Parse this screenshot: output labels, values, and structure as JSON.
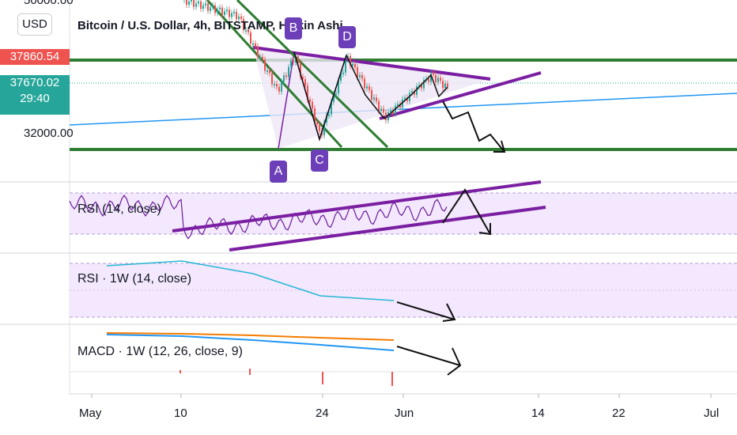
{
  "chart_data": {
    "type": "line",
    "title": "Bitcoin / U.S. Dollar, 4h, BITSTAMP, Heikin Ashi",
    "currency": "USD",
    "price_axis": {
      "ticks": [
        "50000.00",
        "32000.00"
      ],
      "last_price": "37860.54",
      "mark_price": "37670.02",
      "countdown": "29:40",
      "scale": "log"
    },
    "x_axis_ticks": [
      "May",
      "10",
      "24",
      "Jun",
      "14",
      "22",
      "Jul"
    ],
    "pattern_points": [
      "A",
      "B",
      "C",
      "D"
    ],
    "panes": [
      {
        "label": "RSI (14, close)"
      },
      {
        "label": "RSI · 1W (14, close)"
      },
      {
        "label": "MACD · 1W (12, 26, close, 9)"
      }
    ],
    "colors": {
      "up": "#26a69a",
      "down": "#ef5350",
      "support_resistance": "#2e7d32",
      "pattern": "#7b1fa2",
      "trendline": "#2196f3",
      "rsi_band": "#f3e8fd",
      "last_price_tag": "#ef5350",
      "mark_price_tag": "#26a69a",
      "macd_signal": "#f57c00",
      "macd_line": "#2196f3",
      "rsi_1w_line": "#26b6d4"
    }
  }
}
